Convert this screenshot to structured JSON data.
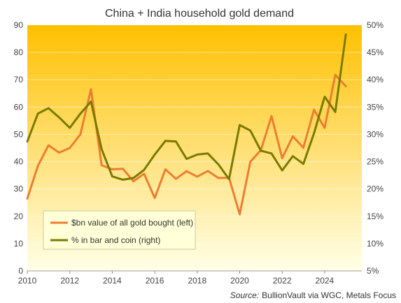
{
  "chart_data": {
    "type": "line",
    "title": "China + India household gold demand",
    "source": {
      "label": "Source:",
      "text": "BullionVault via WGC, Metals Focus"
    },
    "xlim": [
      2010,
      2025.75
    ],
    "x_ticks": [
      "2010",
      "2012",
      "2014",
      "2016",
      "2018",
      "2020",
      "2022",
      "2024"
    ],
    "ylim_left": [
      0,
      90
    ],
    "y_ticks_left": [
      "0",
      "10",
      "20",
      "30",
      "40",
      "50",
      "60",
      "70",
      "80",
      "90"
    ],
    "ylim_right": [
      5,
      50
    ],
    "y_ticks_right": [
      "5%",
      "10%",
      "15%",
      "20%",
      "25%",
      "30%",
      "35%",
      "40%",
      "45%",
      "50%"
    ],
    "legend_position": "bottom-left",
    "background_gradient": {
      "top": "#ffc000",
      "bottom": "#ffffe8"
    },
    "series": [
      {
        "name": "$bn value of all gold bought (left)",
        "axis": "left",
        "color": "#ed7d31",
        "x": [
          2010,
          2010.5,
          2011,
          2011.5,
          2012,
          2012.5,
          2013,
          2013.5,
          2014,
          2014.5,
          2015,
          2015.5,
          2016,
          2016.5,
          2017,
          2017.5,
          2018,
          2018.5,
          2019,
          2019.5,
          2020,
          2020.5,
          2021,
          2021.5,
          2022,
          2022.5,
          2023,
          2023.5,
          2024,
          2024.5,
          2025
        ],
        "values": [
          26.5,
          38.5,
          46,
          43.3,
          45,
          50,
          66.5,
          38.7,
          37.2,
          37.4,
          32.8,
          35.6,
          26.7,
          37.2,
          33.7,
          36.5,
          34.5,
          36.6,
          34,
          34.1,
          20.7,
          40,
          44.2,
          56.7,
          41.3,
          49.3,
          45.1,
          59,
          52.4,
          71.8,
          67.6
        ]
      },
      {
        "name": "% in bar and coin (right)",
        "axis": "right",
        "color": "#7a7a00",
        "x": [
          2010,
          2010.5,
          2011,
          2011.5,
          2012,
          2012.5,
          2013,
          2013.5,
          2014,
          2014.5,
          2015,
          2015.5,
          2016,
          2016.5,
          2017,
          2017.5,
          2018,
          2018.5,
          2019,
          2019.5,
          2020,
          2020.5,
          2021,
          2021.5,
          2022,
          2022.5,
          2023,
          2023.5,
          2024,
          2024.5,
          2025
        ],
        "values": [
          28.7,
          33.8,
          34.8,
          33.1,
          31.2,
          33.8,
          36,
          27.3,
          22.3,
          21.7,
          22,
          23.5,
          26.3,
          28.8,
          28.7,
          25.5,
          26.3,
          26.5,
          24.5,
          21.8,
          31.7,
          30.7,
          27,
          26.5,
          23.4,
          26,
          24.6,
          30.2,
          36.9,
          34.1,
          48.3
        ]
      }
    ]
  }
}
